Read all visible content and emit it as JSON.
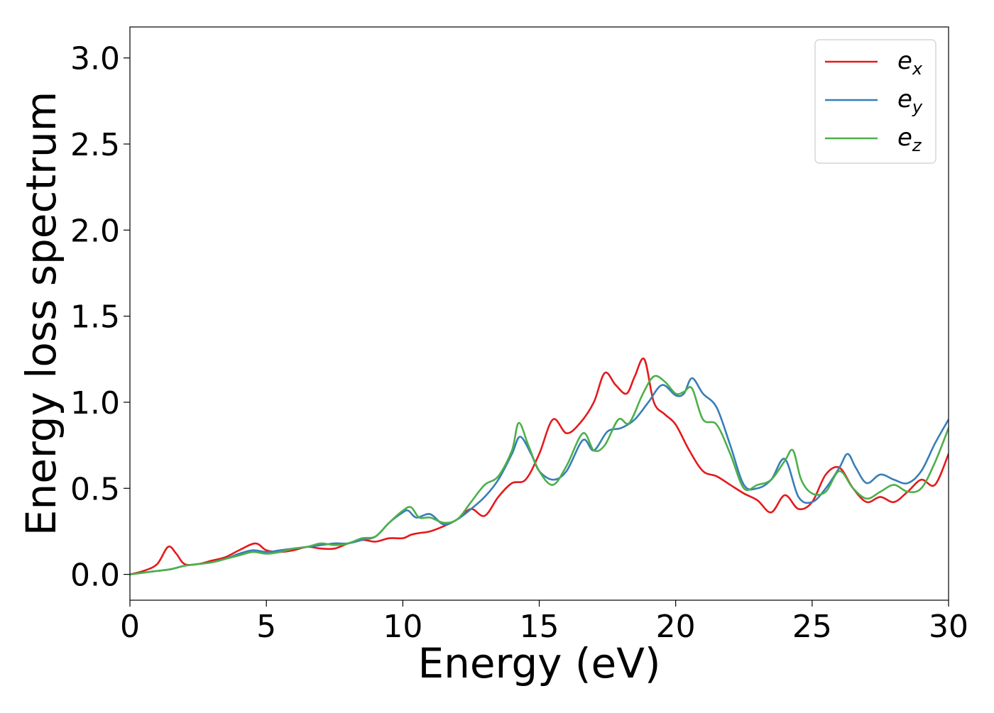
{
  "chart_data": {
    "type": "line",
    "title": "",
    "xlabel": "Energy (eV)",
    "ylabel": "Energy loss spectrum",
    "xlim": [
      0,
      30
    ],
    "ylim": [
      -0.15,
      3.18
    ],
    "xticks": [
      0,
      5,
      10,
      15,
      20,
      25,
      30
    ],
    "xtick_labels": [
      "0",
      "5",
      "10",
      "15",
      "20",
      "25",
      "30"
    ],
    "yticks": [
      0.0,
      0.5,
      1.0,
      1.5,
      2.0,
      2.5,
      3.0
    ],
    "ytick_labels": [
      "0.0",
      "0.5",
      "1.0",
      "1.5",
      "2.0",
      "2.5",
      "3.0"
    ],
    "grid": false,
    "legend_position": "top-right",
    "series": [
      {
        "name": "e_x",
        "legend_base": "e",
        "legend_sub": "x",
        "color": "#e41a1c",
        "x": [
          0,
          0.5,
          1.0,
          1.4,
          1.7,
          2.0,
          2.5,
          3.0,
          3.5,
          4.0,
          4.6,
          5.0,
          5.5,
          6.0,
          6.5,
          7.0,
          7.5,
          8.0,
          8.5,
          9.0,
          9.5,
          10.0,
          10.3,
          10.6,
          11.0,
          11.5,
          12.0,
          12.5,
          13.0,
          13.5,
          14.0,
          14.5,
          15.0,
          15.5,
          16.0,
          16.5,
          17.0,
          17.4,
          17.8,
          18.2,
          18.5,
          18.85,
          19.2,
          19.6,
          20.0,
          20.5,
          21.0,
          21.5,
          22.0,
          22.5,
          23.0,
          23.5,
          24.0,
          24.5,
          25.0,
          25.5,
          26.0,
          26.5,
          27.0,
          27.5,
          28.0,
          28.5,
          29.0,
          29.5,
          30.0
        ],
        "y": [
          0.0,
          0.02,
          0.06,
          0.16,
          0.12,
          0.06,
          0.06,
          0.08,
          0.1,
          0.14,
          0.18,
          0.14,
          0.13,
          0.14,
          0.16,
          0.15,
          0.15,
          0.18,
          0.2,
          0.19,
          0.21,
          0.21,
          0.23,
          0.24,
          0.25,
          0.28,
          0.32,
          0.38,
          0.34,
          0.45,
          0.53,
          0.55,
          0.7,
          0.9,
          0.82,
          0.88,
          1.0,
          1.17,
          1.1,
          1.05,
          1.15,
          1.25,
          1.0,
          0.93,
          0.87,
          0.72,
          0.6,
          0.57,
          0.52,
          0.47,
          0.43,
          0.36,
          0.46,
          0.38,
          0.42,
          0.58,
          0.62,
          0.5,
          0.42,
          0.45,
          0.42,
          0.48,
          0.55,
          0.52,
          0.7
        ]
      },
      {
        "name": "e_y",
        "legend_base": "e",
        "legend_sub": "y",
        "color": "#377eb8",
        "x": [
          0,
          0.5,
          1.0,
          1.5,
          2.0,
          2.5,
          3.0,
          3.5,
          4.0,
          4.5,
          5.0,
          5.5,
          6.0,
          6.5,
          7.0,
          7.5,
          8.0,
          8.5,
          9.0,
          9.5,
          10.0,
          10.2,
          10.5,
          11.0,
          11.5,
          12.0,
          12.5,
          13.0,
          13.5,
          14.0,
          14.3,
          14.7,
          15.0,
          15.5,
          16.0,
          16.6,
          17.0,
          17.5,
          18.0,
          18.5,
          19.0,
          19.5,
          20.0,
          20.3,
          20.6,
          21.0,
          21.5,
          22.0,
          22.5,
          23.0,
          23.5,
          24.0,
          24.5,
          25.0,
          25.5,
          26.0,
          26.3,
          26.6,
          27.0,
          27.5,
          28.0,
          28.5,
          29.0,
          29.5,
          30.0
        ],
        "y": [
          0.0,
          0.01,
          0.02,
          0.03,
          0.05,
          0.06,
          0.07,
          0.09,
          0.12,
          0.14,
          0.13,
          0.14,
          0.15,
          0.16,
          0.17,
          0.18,
          0.18,
          0.2,
          0.22,
          0.3,
          0.36,
          0.37,
          0.33,
          0.35,
          0.29,
          0.32,
          0.38,
          0.45,
          0.55,
          0.7,
          0.8,
          0.7,
          0.6,
          0.55,
          0.6,
          0.78,
          0.72,
          0.83,
          0.85,
          0.9,
          1.0,
          1.1,
          1.04,
          1.05,
          1.14,
          1.05,
          0.97,
          0.75,
          0.52,
          0.5,
          0.55,
          0.67,
          0.45,
          0.42,
          0.5,
          0.62,
          0.7,
          0.62,
          0.53,
          0.58,
          0.55,
          0.53,
          0.6,
          0.76,
          0.9
        ]
      },
      {
        "name": "e_z",
        "legend_base": "e",
        "legend_sub": "z",
        "color": "#4daf4a",
        "x": [
          0,
          0.5,
          1.0,
          1.5,
          2.0,
          2.5,
          3.0,
          3.5,
          4.0,
          4.5,
          5.0,
          5.5,
          6.0,
          6.5,
          7.0,
          7.5,
          8.0,
          8.5,
          9.0,
          9.5,
          10.0,
          10.3,
          10.6,
          11.0,
          11.5,
          12.0,
          12.5,
          13.0,
          13.5,
          14.0,
          14.25,
          14.6,
          15.0,
          15.5,
          16.0,
          16.6,
          17.0,
          17.4,
          17.9,
          18.3,
          18.8,
          19.2,
          19.6,
          20.0,
          20.3,
          20.6,
          21.0,
          21.5,
          22.0,
          22.5,
          23.0,
          23.5,
          24.0,
          24.3,
          24.6,
          25.0,
          25.5,
          26.0,
          26.5,
          27.0,
          27.5,
          28.0,
          28.5,
          29.0,
          29.5,
          30.0
        ],
        "y": [
          0.0,
          0.01,
          0.02,
          0.03,
          0.05,
          0.06,
          0.07,
          0.09,
          0.11,
          0.13,
          0.12,
          0.13,
          0.15,
          0.16,
          0.18,
          0.17,
          0.18,
          0.21,
          0.22,
          0.3,
          0.37,
          0.39,
          0.33,
          0.33,
          0.3,
          0.32,
          0.42,
          0.52,
          0.57,
          0.72,
          0.88,
          0.75,
          0.6,
          0.52,
          0.63,
          0.82,
          0.72,
          0.75,
          0.9,
          0.88,
          1.05,
          1.15,
          1.12,
          1.05,
          1.06,
          1.08,
          0.9,
          0.87,
          0.7,
          0.5,
          0.52,
          0.55,
          0.66,
          0.72,
          0.55,
          0.47,
          0.48,
          0.6,
          0.5,
          0.44,
          0.48,
          0.52,
          0.48,
          0.5,
          0.65,
          0.85
        ]
      }
    ]
  }
}
